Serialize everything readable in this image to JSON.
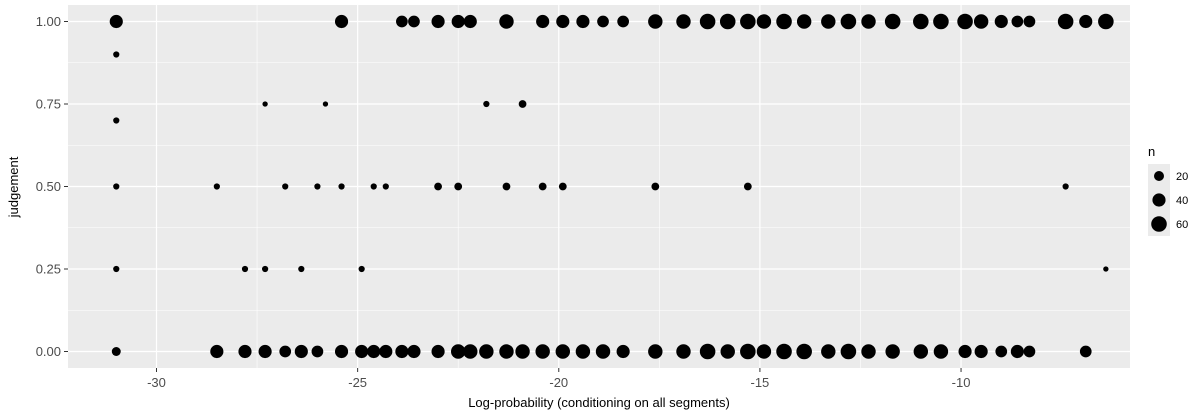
{
  "chart_data": {
    "type": "scatter",
    "title": "",
    "xlabel": "Log-probability (conditioning on all segments)",
    "ylabel": "judgement",
    "xlim": [
      -32.2,
      -5.8
    ],
    "ylim": [
      -0.05,
      1.05
    ],
    "x_ticks": [
      -30,
      -25,
      -20,
      -15,
      -10
    ],
    "x_tick_labels": [
      "-30",
      "-25",
      "-20",
      "-15",
      "-10"
    ],
    "y_ticks": [
      0,
      0.25,
      0.5,
      0.75,
      1
    ],
    "y_tick_labels": [
      "0.00",
      "0.25",
      "0.50",
      "0.75",
      "1.00"
    ],
    "size_variable": "n",
    "legend": {
      "title": "n",
      "position": "right",
      "entries": [
        {
          "label": "20",
          "value": 20
        },
        {
          "label": "40",
          "value": 40
        },
        {
          "label": "60",
          "value": 60
        }
      ]
    },
    "grid": true,
    "colors": {
      "panel": "#ebebeb",
      "grid": "#ffffff",
      "point": "#000000"
    },
    "series": [
      {
        "x": [
          -31.0,
          -31.0,
          -31.0,
          -31.0,
          -31.0,
          -31.0,
          -28.5,
          -28.5,
          -27.8,
          -27.8,
          -27.3,
          -27.3,
          -27.3,
          -26.8,
          -26.8,
          -26.4,
          -26.4,
          -26.0,
          -26.0,
          -25.8,
          -25.4,
          -25.4,
          -25.4,
          -24.9,
          -24.9,
          -24.6,
          -24.6,
          -24.3,
          -24.3,
          -23.9,
          -23.9,
          -23.6,
          -23.6,
          -23.0,
          -23.0,
          -23.0,
          -22.5,
          -22.5,
          -22.5,
          -22.2,
          -22.2,
          -21.8,
          -21.8,
          -21.3,
          -21.3,
          -21.3,
          -20.9,
          -20.9,
          -20.4,
          -20.4,
          -20.4,
          -19.9,
          -19.9,
          -19.9,
          -19.4,
          -19.4,
          -18.9,
          -18.9,
          -18.4,
          -18.4,
          -17.6,
          -17.6,
          -17.6,
          -16.9,
          -16.9,
          -16.3,
          -16.3,
          -15.8,
          -15.8,
          -15.3,
          -15.3,
          -15.3,
          -14.9,
          -14.9,
          -14.4,
          -14.4,
          -13.9,
          -13.9,
          -13.3,
          -13.3,
          -12.8,
          -12.8,
          -12.3,
          -12.3,
          -11.7,
          -11.7,
          -11.0,
          -11.0,
          -10.5,
          -10.5,
          -9.9,
          -9.9,
          -9.5,
          -9.5,
          -9.0,
          -9.0,
          -8.6,
          -8.6,
          -8.3,
          -8.3,
          -7.4,
          -7.4,
          -6.9,
          -6.9,
          -6.4,
          -6.4
        ],
        "y": [
          1.0,
          0.9,
          0.7,
          0.5,
          0.25,
          0.0,
          0.0,
          0.5,
          0.0,
          0.25,
          0.0,
          0.25,
          0.75,
          0.0,
          0.5,
          0.0,
          0.25,
          0.0,
          0.5,
          0.75,
          0.0,
          0.5,
          1.0,
          0.0,
          0.25,
          0.0,
          0.5,
          0.0,
          0.5,
          0.0,
          1.0,
          0.0,
          1.0,
          0.0,
          0.5,
          1.0,
          0.0,
          0.5,
          1.0,
          0.0,
          1.0,
          0.0,
          0.75,
          0.0,
          0.5,
          1.0,
          0.0,
          0.75,
          0.0,
          0.5,
          1.0,
          0.0,
          0.5,
          1.0,
          0.0,
          1.0,
          0.0,
          1.0,
          0.0,
          1.0,
          0.0,
          0.5,
          1.0,
          0.0,
          1.0,
          0.0,
          1.0,
          0.0,
          1.0,
          0.0,
          0.5,
          1.0,
          0.0,
          1.0,
          0.0,
          1.0,
          0.0,
          1.0,
          0.0,
          1.0,
          0.0,
          1.0,
          0.0,
          1.0,
          0.0,
          1.0,
          0.0,
          1.0,
          0.0,
          1.0,
          0.0,
          1.0,
          0.0,
          1.0,
          0.0,
          1.0,
          0.0,
          1.0,
          0.0,
          1.0,
          0.5,
          1.0,
          0.0,
          1.0,
          0.25,
          1.0
        ],
        "n": [
          40,
          5,
          5,
          5,
          5,
          15,
          40,
          5,
          40,
          5,
          40,
          5,
          3,
          30,
          5,
          40,
          5,
          30,
          5,
          3,
          40,
          5,
          40,
          40,
          5,
          40,
          5,
          40,
          5,
          40,
          30,
          40,
          30,
          40,
          10,
          40,
          50,
          10,
          40,
          50,
          40,
          50,
          5,
          50,
          10,
          50,
          50,
          10,
          50,
          10,
          40,
          50,
          10,
          40,
          50,
          40,
          50,
          30,
          40,
          30,
          50,
          10,
          50,
          50,
          50,
          60,
          60,
          50,
          60,
          60,
          10,
          60,
          50,
          50,
          60,
          60,
          60,
          50,
          50,
          50,
          60,
          60,
          50,
          50,
          50,
          60,
          50,
          60,
          50,
          60,
          40,
          60,
          40,
          50,
          30,
          40,
          40,
          30,
          30,
          30,
          5,
          60,
          30,
          40,
          3,
          60
        ]
      }
    ]
  }
}
